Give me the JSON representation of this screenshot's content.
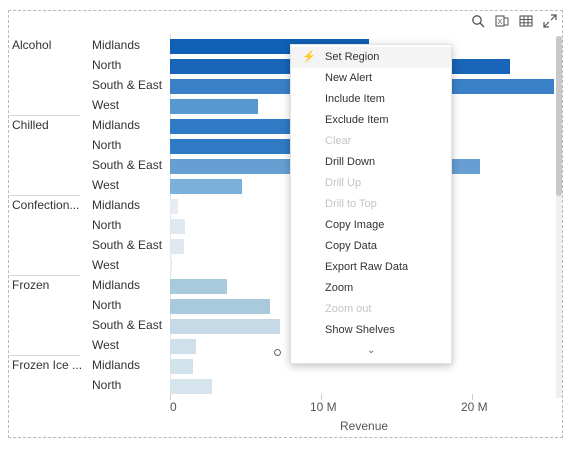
{
  "toolbar": {
    "icons": [
      "search-icon",
      "export-excel-icon",
      "table-icon",
      "expand-icon"
    ]
  },
  "chart_data": {
    "type": "bar",
    "orientation": "horizontal",
    "xlabel": "Revenue",
    "x_ticks": [
      "0",
      "10 M",
      "20 M"
    ],
    "xlim": [
      0,
      25500000
    ],
    "rows": [
      {
        "category": "Alcohol",
        "region": "Midlands",
        "value": 13200000,
        "color": "#0f60b6"
      },
      {
        "category": "",
        "region": "North",
        "value": 22500000,
        "color": "#1864b8"
      },
      {
        "category": "",
        "region": "South & East",
        "value": 25500000,
        "color": "#3a80c7"
      },
      {
        "category": "",
        "region": "West",
        "value": 5800000,
        "color": "#5797d2"
      },
      {
        "category": "Chilled",
        "region": "Midlands",
        "value": 11700000,
        "color": "#2f7ac4"
      },
      {
        "category": "",
        "region": "North",
        "value": 10700000,
        "color": "#2f7ac4"
      },
      {
        "category": "",
        "region": "South & East",
        "value": 20500000,
        "color": "#679fd2"
      },
      {
        "category": "",
        "region": "West",
        "value": 4800000,
        "color": "#7ab0d9"
      },
      {
        "category": "Confection...",
        "region": "Midlands",
        "value": 550000,
        "color": "#e6ecf2"
      },
      {
        "category": "",
        "region": "North",
        "value": 1000000,
        "color": "#e0e9f1"
      },
      {
        "category": "",
        "region": "South & East",
        "value": 900000,
        "color": "#e0e9f1"
      },
      {
        "category": "",
        "region": "West",
        "value": 100000,
        "color": "#e9eef3"
      },
      {
        "category": "Frozen",
        "region": "Midlands",
        "value": 3800000,
        "color": "#a9c9dd"
      },
      {
        "category": "",
        "region": "North",
        "value": 6600000,
        "color": "#a9c9dd"
      },
      {
        "category": "",
        "region": "South & East",
        "value": 7300000,
        "color": "#c5d9e6"
      },
      {
        "category": "",
        "region": "West",
        "value": 1700000,
        "color": "#cfe0ea"
      },
      {
        "category": "Frozen Ice ...",
        "region": "Midlands",
        "value": 1500000,
        "color": "#d2e2eb"
      },
      {
        "category": "",
        "region": "North",
        "value": 2800000,
        "color": "#d6e4ed"
      }
    ]
  },
  "context_menu": {
    "items": [
      {
        "label": "Set Region",
        "enabled": true,
        "icon": "lightning-icon"
      },
      {
        "label": "New Alert",
        "enabled": true
      },
      {
        "label": "Include Item",
        "enabled": true
      },
      {
        "label": "Exclude Item",
        "enabled": true
      },
      {
        "label": "Clear",
        "enabled": false
      },
      {
        "label": "Drill Down",
        "enabled": true
      },
      {
        "label": "Drill Up",
        "enabled": false
      },
      {
        "label": "Drill to Top",
        "enabled": false
      },
      {
        "label": "Copy Image",
        "enabled": true
      },
      {
        "label": "Copy Data",
        "enabled": true
      },
      {
        "label": "Export Raw Data",
        "enabled": true
      },
      {
        "label": "Zoom",
        "enabled": true
      },
      {
        "label": "Zoom out",
        "enabled": false
      },
      {
        "label": "Show Shelves",
        "enabled": true
      }
    ],
    "more_glyph": "⌄"
  }
}
